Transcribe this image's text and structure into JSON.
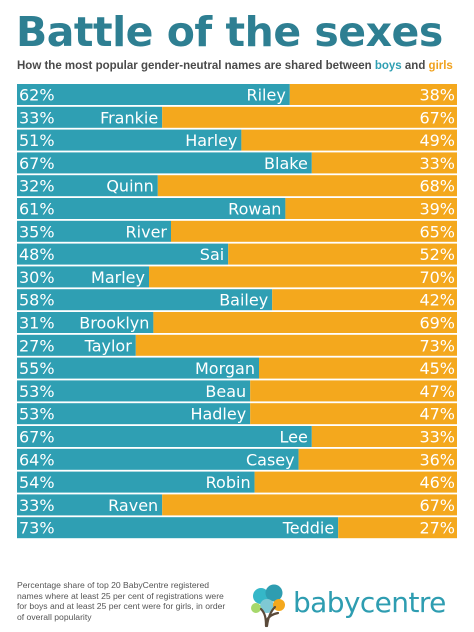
{
  "title": "Battle of the sexes",
  "subtitle": {
    "text_before": "How the most popular gender-neutral names are shared between ",
    "boys": "boys",
    "and": " and ",
    "girls": "girls"
  },
  "chart_data": {
    "type": "bar",
    "stacked": true,
    "orientation": "horizontal",
    "ylim": [
      0,
      100
    ],
    "categories": [
      "Riley",
      "Frankie",
      "Harley",
      "Blake",
      "Quinn",
      "Rowan",
      "River",
      "Sai",
      "Marley",
      "Bailey",
      "Brooklyn",
      "Taylor",
      "Morgan",
      "Beau",
      "Hadley",
      "Lee",
      "Casey",
      "Robin",
      "Raven",
      "Teddie"
    ],
    "series": [
      {
        "name": "boys",
        "color": "#2f9fb3",
        "values": [
          62,
          33,
          51,
          67,
          32,
          61,
          35,
          48,
          30,
          58,
          31,
          27,
          55,
          53,
          53,
          67,
          64,
          54,
          33,
          73
        ]
      },
      {
        "name": "girls",
        "color": "#f4a81d",
        "values": [
          38,
          67,
          49,
          33,
          68,
          39,
          65,
          52,
          70,
          42,
          69,
          73,
          45,
          47,
          47,
          33,
          36,
          46,
          67,
          27
        ]
      }
    ],
    "value_labels_boys": [
      "62%",
      "33%",
      "51%",
      "67%",
      "32%",
      "61%",
      "35%",
      "48%",
      "30%",
      "58%",
      "31%",
      "27%",
      "55%",
      "53%",
      "53%",
      "67%",
      "64%",
      "54%",
      "33%",
      "73%"
    ],
    "value_labels_girls": [
      "38%",
      "67%",
      "49%",
      "33%",
      "68%",
      "39%",
      "65%",
      "52%",
      "70%",
      "42%",
      "69%",
      "73%",
      "45%",
      "47%",
      "47%",
      "33%",
      "36%",
      "46%",
      "67%",
      "27%"
    ]
  },
  "footnote": "Percentage share of top 20 BabyCentre registered names where at least 25 per cent of registrations were for boys and at least 25 per cent were for girls, in order of overall popularity",
  "logo": {
    "text": "babycentre",
    "icon": "tree-logo-icon"
  },
  "colors": {
    "title": "#2e7f92",
    "boys": "#2f9fb3",
    "girls": "#f4a81d",
    "text_light": "#ffffff"
  }
}
